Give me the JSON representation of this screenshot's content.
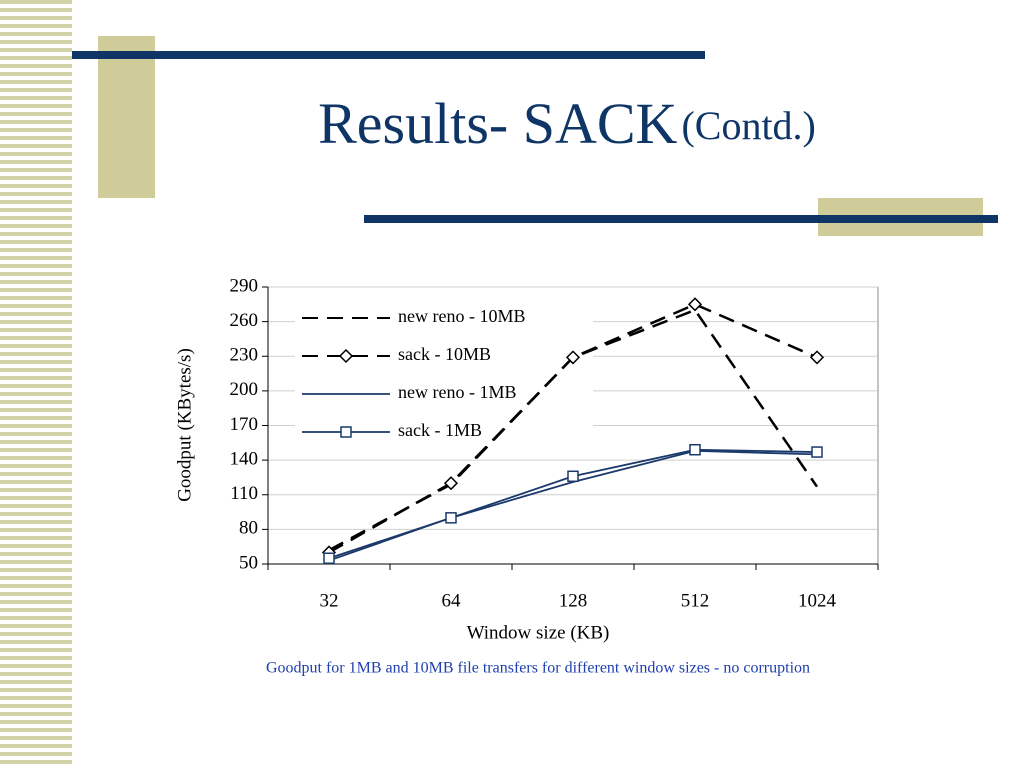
{
  "slide": {
    "title": "Results- SACK",
    "title_suffix": "(Contd.)",
    "caption": "Goodput for 1MB and 10MB file transfers for different window sizes - no corruption"
  },
  "chart_data": {
    "type": "line",
    "x_label": "Window size (KB)",
    "y_label": "Goodput (KBytes/s)",
    "categories": [
      "32",
      "64",
      "128",
      "512",
      "1024"
    ],
    "ylim": [
      50,
      290
    ],
    "yticks": [
      50,
      80,
      110,
      140,
      170,
      200,
      230,
      260,
      290
    ],
    "grid": true,
    "series": [
      {
        "name": "new reno - 10MB",
        "color": "#000000",
        "dash": true,
        "marker": "none",
        "values": [
          62,
          119,
          229,
          270,
          117
        ]
      },
      {
        "name": "sack - 10MB",
        "color": "#000000",
        "dash": true,
        "marker": "diamond",
        "values": [
          60,
          120,
          229,
          275,
          229
        ]
      },
      {
        "name": "new reno - 1MB",
        "color": "#1b3a6b",
        "dash": false,
        "marker": "none",
        "values": [
          53,
          90,
          121,
          148,
          145
        ]
      },
      {
        "name": "sack - 1MB",
        "color": "#1b3a6b",
        "dash": false,
        "marker": "square",
        "values": [
          55,
          90,
          126,
          149,
          147
        ]
      }
    ]
  }
}
